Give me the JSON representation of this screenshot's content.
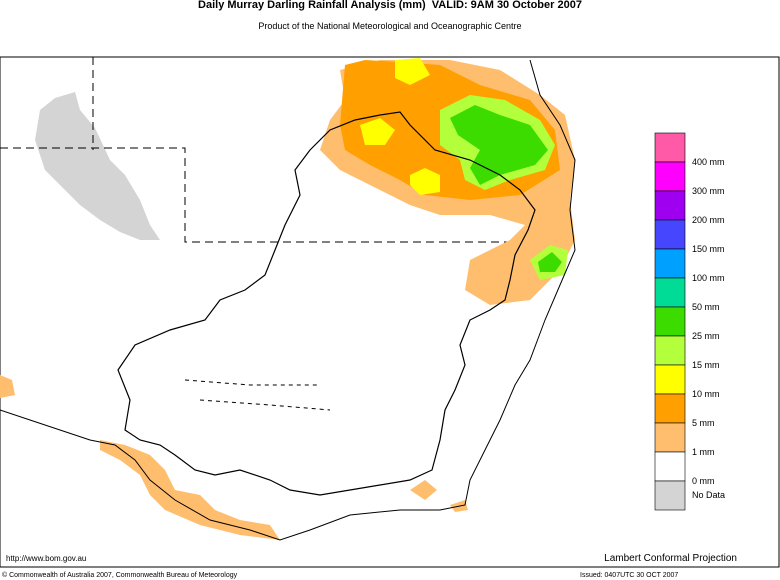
{
  "header": {
    "title": "Daily Murray Darling Rainfall Analysis (mm)  VALID: 9AM 30 October 2007",
    "subtitle": "Product of the National Meteorological and Oceanographic Centre"
  },
  "legend": {
    "colors": [
      "#ff5aa8",
      "#ff00ff",
      "#a000f0",
      "#4646ff",
      "#00a0ff",
      "#00dc96",
      "#3cdc00",
      "#b4ff3c",
      "#ffff00",
      "#ffa000",
      "#ffbe6e",
      "#ffffff",
      "#d4d4d4"
    ],
    "labels": [
      "400 mm",
      "300 mm",
      "200 mm",
      "150 mm",
      "100 mm",
      "50 mm",
      "25 mm",
      "15 mm",
      "10 mm",
      "5 mm",
      "1 mm",
      "0 mm",
      "No Data"
    ]
  },
  "footer": {
    "url": "http://www.bom.gov.au",
    "projection": "Lambert Conformal Projection",
    "copyright": "© Commonwealth of Australia 2007, Commonwealth Bureau of Meteorology",
    "issued": "Issued: 0407UTC 30 OCT 2007"
  }
}
